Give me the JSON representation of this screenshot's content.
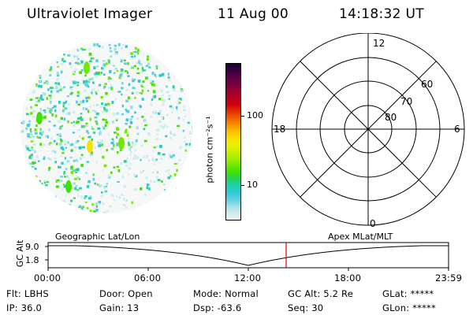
{
  "header": {
    "instrument": "Ultraviolet Imager",
    "date": "11 Aug 00",
    "time": "14:18:32 UT"
  },
  "colorbar": {
    "unit_label": "photon cm⁻²s⁻¹",
    "ticks": [
      "100",
      "10"
    ],
    "colors": [
      "#1a0033",
      "#3a0040",
      "#5a0045",
      "#7a0040",
      "#9a0030",
      "#b80020",
      "#d00010",
      "#e03000",
      "#f06000",
      "#f89000",
      "#fcc000",
      "#f8e000",
      "#e8f000",
      "#c8f000",
      "#a0f000",
      "#70e800",
      "#40e000",
      "#20d060",
      "#20d0b0",
      "#30c8d8",
      "#60d0e0",
      "#a0e0e8",
      "#d0ecee",
      "#f0f0f0"
    ]
  },
  "polar": {
    "mlt_labels": [
      "12",
      "18",
      "6",
      "0"
    ],
    "lat_labels": [
      "60",
      "70",
      "80"
    ]
  },
  "timeline": {
    "left_label": "Geographic Lat/Lon",
    "right_label": "Apex MLat/MLT",
    "axis_label": "GC Alt",
    "y_ticks": [
      "9.0",
      "1.8"
    ],
    "x_ticks": [
      "00:00",
      "06:00",
      "12:00",
      "18:00",
      "23:59"
    ],
    "marker_color": "#dd0000"
  },
  "footer": {
    "filter": "Flt: LBHS",
    "ip": "IP: 36.0",
    "door": "Door: Open",
    "gain": "Gain: 13",
    "mode": "Mode: Normal",
    "dsp": "Dsp:  -63.6",
    "gc_alt": "GC Alt: 5.2 Re",
    "seq": "Seq: 30",
    "glat": "GLat: *****",
    "glon": "GLon: *****"
  }
}
